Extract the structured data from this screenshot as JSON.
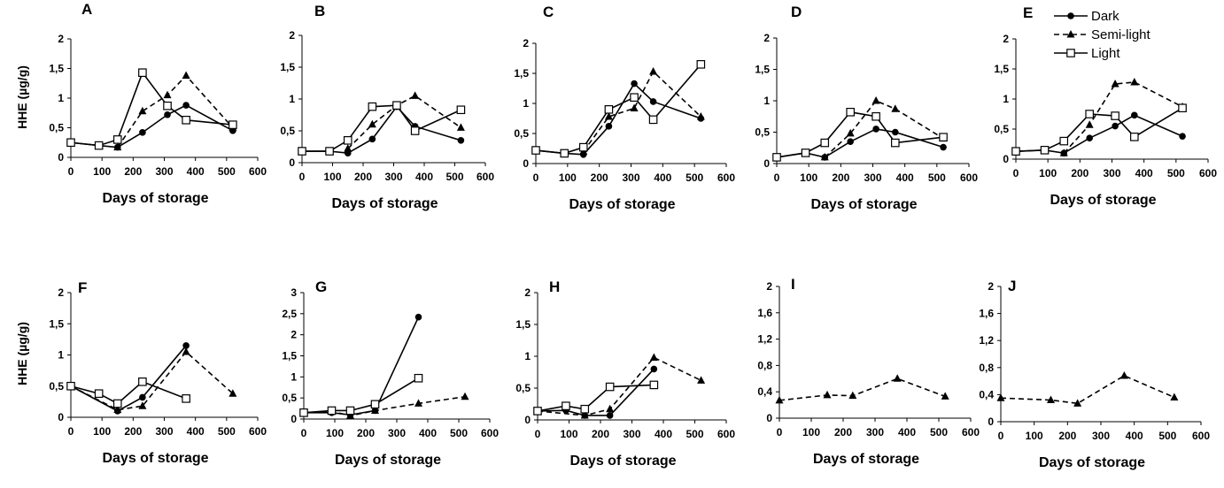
{
  "figure": {
    "y_axis_label": "HHE (µg/g)",
    "x_axis_label": "Days of storage",
    "legend": [
      {
        "name": "Dark",
        "style": "solid",
        "marker": "circle"
      },
      {
        "name": "Semi-light",
        "style": "dashed",
        "marker": "triangle"
      },
      {
        "name": "Light",
        "style": "solid",
        "marker": "square"
      }
    ]
  },
  "chart_data": [
    {
      "panel": "A",
      "type": "line",
      "xlim": [
        0,
        600
      ],
      "ylim": [
        0,
        2
      ],
      "xticks": [
        "0",
        "100",
        "200",
        "300",
        "400",
        "500",
        "600"
      ],
      "yticks": [
        "0",
        "0,5",
        "1",
        "1,5",
        "2"
      ],
      "series": [
        {
          "name": "Dark",
          "points": [
            [
              0,
              0.25
            ],
            [
              90,
              0.2
            ],
            [
              150,
              0.17
            ],
            [
              230,
              0.42
            ],
            [
              310,
              0.72
            ],
            [
              370,
              0.88
            ],
            [
              520,
              0.45
            ]
          ]
        },
        {
          "name": "Semi-light",
          "points": [
            [
              150,
              0.17
            ],
            [
              230,
              0.78
            ],
            [
              310,
              1.05
            ],
            [
              370,
              1.38
            ],
            [
              520,
              0.5
            ]
          ]
        },
        {
          "name": "Light",
          "points": [
            [
              0,
              0.25
            ],
            [
              90,
              0.2
            ],
            [
              150,
              0.3
            ],
            [
              230,
              1.43
            ],
            [
              310,
              0.87
            ],
            [
              370,
              0.63
            ],
            [
              520,
              0.55
            ]
          ]
        }
      ]
    },
    {
      "panel": "B",
      "type": "line",
      "xlim": [
        0,
        600
      ],
      "ylim": [
        0,
        2
      ],
      "xticks": [
        "0",
        "100",
        "200",
        "300",
        "400",
        "500",
        "600"
      ],
      "yticks": [
        "0",
        "0,5",
        "1",
        "1,5",
        "2"
      ],
      "series": [
        {
          "name": "Dark",
          "points": [
            [
              0,
              0.18
            ],
            [
              90,
              0.18
            ],
            [
              150,
              0.15
            ],
            [
              230,
              0.37
            ],
            [
              310,
              0.88
            ],
            [
              370,
              0.57
            ],
            [
              520,
              0.35
            ]
          ]
        },
        {
          "name": "Semi-light",
          "points": [
            [
              150,
              0.22
            ],
            [
              230,
              0.6
            ],
            [
              310,
              0.9
            ],
            [
              370,
              1.05
            ],
            [
              520,
              0.55
            ]
          ]
        },
        {
          "name": "Light",
          "points": [
            [
              0,
              0.18
            ],
            [
              90,
              0.18
            ],
            [
              150,
              0.35
            ],
            [
              230,
              0.88
            ],
            [
              310,
              0.9
            ],
            [
              370,
              0.5
            ],
            [
              520,
              0.83
            ]
          ]
        }
      ]
    },
    {
      "panel": "C",
      "type": "line",
      "xlim": [
        0,
        600
      ],
      "ylim": [
        0,
        2
      ],
      "xticks": [
        "0",
        "100",
        "200",
        "300",
        "400",
        "500",
        "600"
      ],
      "yticks": [
        "0",
        "0,5",
        "1",
        "1,5",
        "2"
      ],
      "series": [
        {
          "name": "Dark",
          "points": [
            [
              0,
              0.22
            ],
            [
              90,
              0.17
            ],
            [
              150,
              0.15
            ],
            [
              230,
              0.62
            ],
            [
              310,
              1.33
            ],
            [
              370,
              1.03
            ],
            [
              520,
              0.75
            ]
          ]
        },
        {
          "name": "Semi-light",
          "points": [
            [
              150,
              0.2
            ],
            [
              230,
              0.78
            ],
            [
              310,
              0.92
            ],
            [
              370,
              1.53
            ],
            [
              520,
              0.78
            ]
          ]
        },
        {
          "name": "Light",
          "points": [
            [
              0,
              0.22
            ],
            [
              90,
              0.17
            ],
            [
              150,
              0.27
            ],
            [
              230,
              0.9
            ],
            [
              310,
              1.1
            ],
            [
              370,
              0.73
            ],
            [
              520,
              1.65
            ]
          ]
        }
      ]
    },
    {
      "panel": "D",
      "type": "line",
      "xlim": [
        0,
        600
      ],
      "ylim": [
        0,
        2
      ],
      "xticks": [
        "0",
        "100",
        "200",
        "300",
        "400",
        "500",
        "600"
      ],
      "yticks": [
        "0",
        "0,5",
        "1",
        "1,5",
        "2"
      ],
      "series": [
        {
          "name": "Dark",
          "points": [
            [
              0,
              0.1
            ],
            [
              90,
              0.17
            ],
            [
              150,
              0.1
            ],
            [
              230,
              0.35
            ],
            [
              310,
              0.55
            ],
            [
              370,
              0.5
            ],
            [
              520,
              0.26
            ]
          ]
        },
        {
          "name": "Semi-light",
          "points": [
            [
              150,
              0.1
            ],
            [
              230,
              0.48
            ],
            [
              310,
              1.0
            ],
            [
              370,
              0.87
            ],
            [
              520,
              0.4
            ]
          ]
        },
        {
          "name": "Light",
          "points": [
            [
              0,
              0.1
            ],
            [
              90,
              0.17
            ],
            [
              150,
              0.33
            ],
            [
              230,
              0.82
            ],
            [
              310,
              0.75
            ],
            [
              370,
              0.33
            ],
            [
              520,
              0.42
            ]
          ]
        }
      ]
    },
    {
      "panel": "E",
      "type": "line",
      "xlim": [
        0,
        600
      ],
      "ylim": [
        0,
        2
      ],
      "xticks": [
        "0",
        "100",
        "200",
        "300",
        "400",
        "500",
        "600"
      ],
      "yticks": [
        "0",
        "0,5",
        "1",
        "1,5",
        "2"
      ],
      "series": [
        {
          "name": "Dark",
          "points": [
            [
              0,
              0.13
            ],
            [
              90,
              0.15
            ],
            [
              150,
              0.1
            ],
            [
              230,
              0.35
            ],
            [
              310,
              0.55
            ],
            [
              370,
              0.73
            ],
            [
              520,
              0.38
            ]
          ]
        },
        {
          "name": "Semi-light",
          "points": [
            [
              150,
              0.1
            ],
            [
              230,
              0.57
            ],
            [
              310,
              1.25
            ],
            [
              370,
              1.28
            ],
            [
              520,
              0.87
            ]
          ]
        },
        {
          "name": "Light",
          "points": [
            [
              0,
              0.13
            ],
            [
              90,
              0.15
            ],
            [
              150,
              0.3
            ],
            [
              230,
              0.75
            ],
            [
              310,
              0.72
            ],
            [
              370,
              0.37
            ],
            [
              520,
              0.85
            ]
          ]
        }
      ]
    },
    {
      "panel": "F",
      "type": "line",
      "xlim": [
        0,
        600
      ],
      "ylim": [
        0,
        2
      ],
      "xticks": [
        "0",
        "100",
        "200",
        "300",
        "400",
        "500",
        "600"
      ],
      "yticks": [
        "0",
        "0,5",
        "1",
        "1,5",
        "2"
      ],
      "series": [
        {
          "name": "Dark",
          "points": [
            [
              0,
              0.5
            ],
            [
              150,
              0.1
            ],
            [
              230,
              0.32
            ],
            [
              370,
              1.15
            ]
          ]
        },
        {
          "name": "Semi-light",
          "points": [
            [
              0,
              0.5
            ],
            [
              150,
              0.12
            ],
            [
              230,
              0.18
            ],
            [
              370,
              1.05
            ],
            [
              520,
              0.38
            ]
          ]
        },
        {
          "name": "Light",
          "points": [
            [
              0,
              0.5
            ],
            [
              90,
              0.38
            ],
            [
              150,
              0.22
            ],
            [
              230,
              0.57
            ],
            [
              370,
              0.3
            ]
          ]
        }
      ]
    },
    {
      "panel": "G",
      "type": "line",
      "xlim": [
        0,
        600
      ],
      "ylim": [
        0,
        3
      ],
      "xticks": [
        "0",
        "100",
        "200",
        "300",
        "400",
        "500",
        "600"
      ],
      "yticks": [
        "0",
        "0,5",
        "1",
        "1,5",
        "2",
        "2,5",
        "3"
      ],
      "series": [
        {
          "name": "Dark",
          "points": [
            [
              0,
              0.15
            ],
            [
              90,
              0.15
            ],
            [
              150,
              0.1
            ],
            [
              230,
              0.2
            ],
            [
              370,
              2.42
            ]
          ]
        },
        {
          "name": "Semi-light",
          "points": [
            [
              0,
              0.15
            ],
            [
              90,
              0.18
            ],
            [
              150,
              0.08
            ],
            [
              230,
              0.2
            ],
            [
              370,
              0.37
            ],
            [
              520,
              0.53
            ]
          ]
        },
        {
          "name": "Light",
          "points": [
            [
              0,
              0.15
            ],
            [
              90,
              0.2
            ],
            [
              150,
              0.2
            ],
            [
              230,
              0.35
            ],
            [
              370,
              0.97
            ]
          ]
        }
      ]
    },
    {
      "panel": "H",
      "type": "line",
      "xlim": [
        0,
        600
      ],
      "ylim": [
        0,
        2
      ],
      "xticks": [
        "0",
        "100",
        "200",
        "300",
        "400",
        "500",
        "600"
      ],
      "yticks": [
        "0",
        "0,5",
        "1",
        "1,5",
        "2"
      ],
      "series": [
        {
          "name": "Dark",
          "points": [
            [
              0,
              0.14
            ],
            [
              90,
              0.15
            ],
            [
              150,
              0.07
            ],
            [
              230,
              0.07
            ],
            [
              370,
              0.8
            ]
          ]
        },
        {
          "name": "Semi-light",
          "points": [
            [
              0,
              0.14
            ],
            [
              150,
              0.07
            ],
            [
              230,
              0.17
            ],
            [
              370,
              0.98
            ],
            [
              520,
              0.62
            ]
          ]
        },
        {
          "name": "Light",
          "points": [
            [
              0,
              0.14
            ],
            [
              90,
              0.22
            ],
            [
              150,
              0.17
            ],
            [
              230,
              0.52
            ],
            [
              370,
              0.55
            ]
          ]
        }
      ]
    },
    {
      "panel": "I",
      "type": "line",
      "xlim": [
        0,
        600
      ],
      "ylim": [
        0,
        2
      ],
      "xticks": [
        "0",
        "100",
        "200",
        "300",
        "400",
        "500",
        "600"
      ],
      "yticks": [
        "0",
        "0,4",
        "0,8",
        "1,2",
        "1,6",
        "2"
      ],
      "series": [
        {
          "name": "Semi-light",
          "points": [
            [
              0,
              0.27
            ],
            [
              150,
              0.35
            ],
            [
              230,
              0.34
            ],
            [
              370,
              0.6
            ],
            [
              520,
              0.33
            ]
          ]
        }
      ]
    },
    {
      "panel": "J",
      "type": "line",
      "xlim": [
        0,
        600
      ],
      "ylim": [
        0,
        2
      ],
      "xticks": [
        "0",
        "100",
        "200",
        "300",
        "400",
        "500",
        "600"
      ],
      "yticks": [
        "0",
        "0,4",
        "0,8",
        "1,2",
        "1,6",
        "2"
      ],
      "series": [
        {
          "name": "Semi-light",
          "points": [
            [
              0,
              0.35
            ],
            [
              150,
              0.32
            ],
            [
              230,
              0.27
            ],
            [
              370,
              0.68
            ],
            [
              520,
              0.36
            ]
          ]
        }
      ]
    }
  ]
}
